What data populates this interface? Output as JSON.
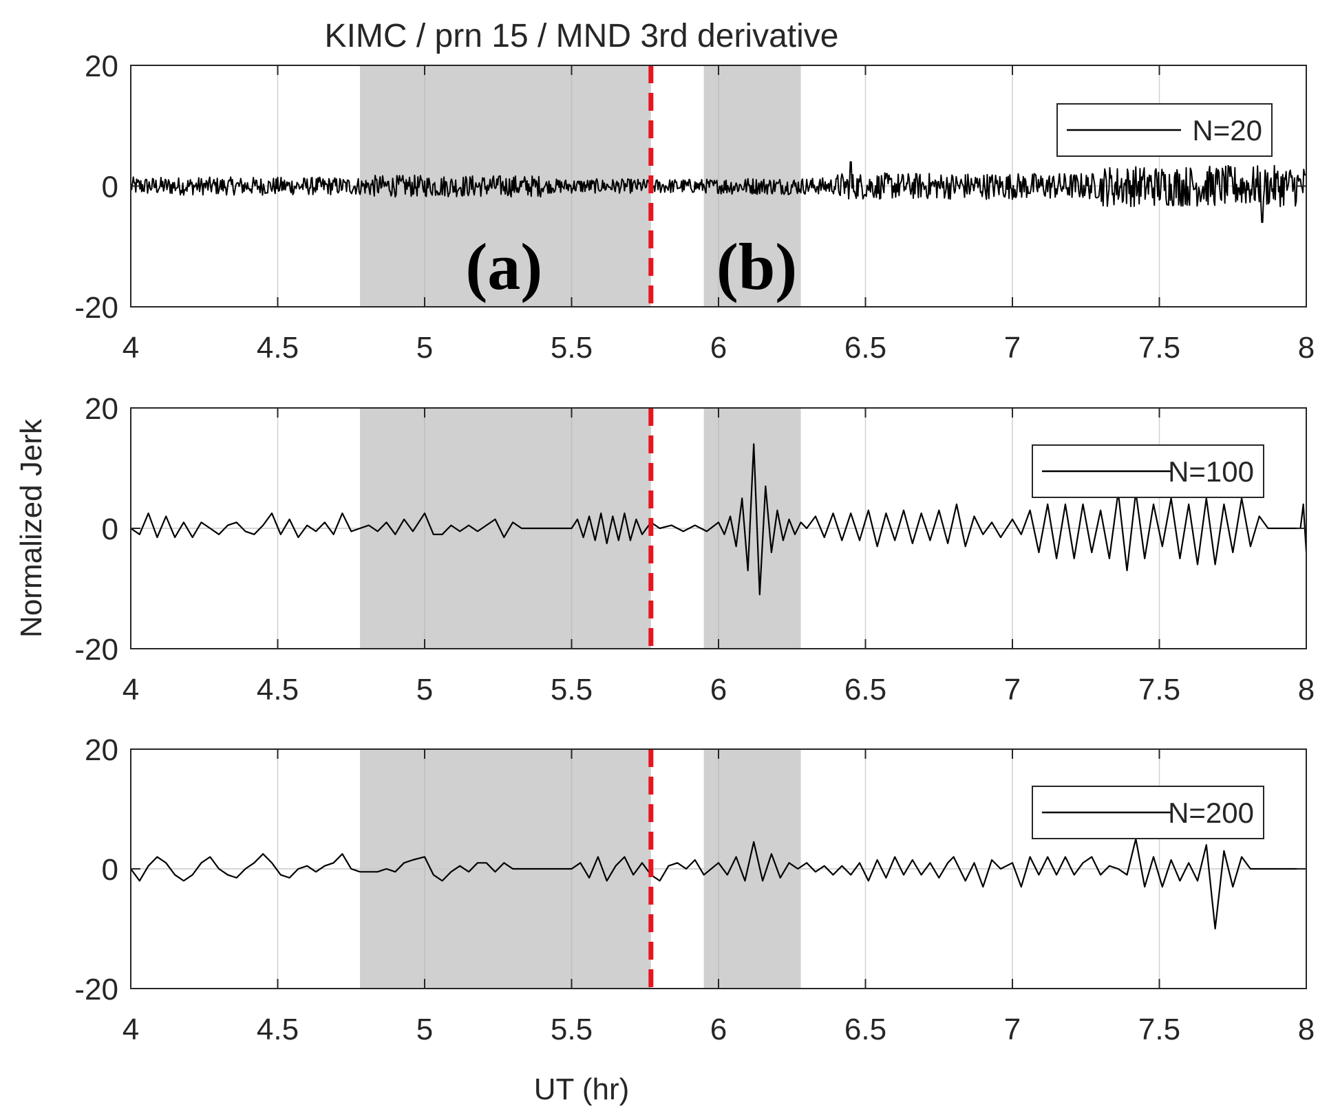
{
  "chart_data": {
    "type": "line",
    "title": "KIMC / prn 15 / MND 3rd derivative",
    "xlabel": "UT (hr)",
    "ylabel": "Normalized Jerk",
    "xlim": [
      4,
      8
    ],
    "ylim": [
      -20,
      20
    ],
    "xticks": [
      4,
      4.5,
      5,
      5.5,
      6,
      6.5,
      7,
      7.5,
      8
    ],
    "yticks": [
      -20,
      0,
      20
    ],
    "grid": "vertical",
    "event_line": {
      "x": 5.77,
      "color": "#e8141e",
      "style": "dashed"
    },
    "shaded_regions": [
      {
        "label": "(a)",
        "x_start": 4.78,
        "x_end": 5.77,
        "color": "#d0d0d0"
      },
      {
        "label": "(b)",
        "x_start": 5.95,
        "x_end": 6.28,
        "color": "#d0d0d0"
      }
    ],
    "legend_position": "top-right",
    "series": [
      {
        "name": "N=20",
        "color": "#000000",
        "segments": [
          {
            "x_start": 4.0,
            "x_end": 4.8,
            "amplitude": 1.5
          },
          {
            "x_start": 4.8,
            "x_end": 5.4,
            "amplitude": 1.8
          },
          {
            "x_start": 5.4,
            "x_end": 6.0,
            "amplitude": 1.2
          },
          {
            "x_start": 6.0,
            "x_end": 6.4,
            "amplitude": 1.4
          },
          {
            "x_start": 6.4,
            "x_end": 7.3,
            "amplitude": 2.2
          },
          {
            "x_start": 7.3,
            "x_end": 8.0,
            "amplitude": 3.4
          }
        ],
        "peaks": [
          {
            "x": 6.45,
            "y": 4
          },
          {
            "x": 7.85,
            "y": -6
          }
        ]
      },
      {
        "name": "N=100",
        "color": "#000000",
        "points": [
          [
            4.0,
            0
          ],
          [
            4.03,
            -1
          ],
          [
            4.06,
            2.5
          ],
          [
            4.09,
            -1.5
          ],
          [
            4.12,
            2
          ],
          [
            4.15,
            -1.5
          ],
          [
            4.18,
            1
          ],
          [
            4.21,
            -1.5
          ],
          [
            4.24,
            1
          ],
          [
            4.27,
            0
          ],
          [
            4.3,
            -1
          ],
          [
            4.33,
            0.5
          ],
          [
            4.36,
            1
          ],
          [
            4.39,
            -0.5
          ],
          [
            4.42,
            -1
          ],
          [
            4.45,
            0.5
          ],
          [
            4.48,
            2.5
          ],
          [
            4.51,
            -1
          ],
          [
            4.54,
            1.5
          ],
          [
            4.57,
            -1.5
          ],
          [
            4.6,
            0.5
          ],
          [
            4.63,
            -0.5
          ],
          [
            4.66,
            1
          ],
          [
            4.69,
            -1
          ],
          [
            4.72,
            2.5
          ],
          [
            4.75,
            -0.5
          ],
          [
            4.78,
            0
          ],
          [
            4.81,
            0.5
          ],
          [
            4.84,
            -0.5
          ],
          [
            4.87,
            1
          ],
          [
            4.9,
            -1
          ],
          [
            4.93,
            1.5
          ],
          [
            4.96,
            -0.5
          ],
          [
            5.0,
            2.5
          ],
          [
            5.03,
            -1
          ],
          [
            5.06,
            -1
          ],
          [
            5.09,
            0.5
          ],
          [
            5.12,
            -0.5
          ],
          [
            5.15,
            0.5
          ],
          [
            5.18,
            -0.5
          ],
          [
            5.21,
            0.5
          ],
          [
            5.24,
            1.5
          ],
          [
            5.27,
            -1.5
          ],
          [
            5.3,
            1
          ],
          [
            5.33,
            0
          ],
          [
            5.5,
            0
          ],
          [
            5.52,
            1.5
          ],
          [
            5.54,
            -1.5
          ],
          [
            5.56,
            2
          ],
          [
            5.58,
            -2
          ],
          [
            5.6,
            2.5
          ],
          [
            5.62,
            -2.5
          ],
          [
            5.64,
            2
          ],
          [
            5.66,
            -2
          ],
          [
            5.68,
            2.5
          ],
          [
            5.7,
            -2
          ],
          [
            5.72,
            1.5
          ],
          [
            5.74,
            -1
          ],
          [
            5.77,
            1
          ],
          [
            5.8,
            0
          ],
          [
            5.84,
            0.5
          ],
          [
            5.88,
            -0.5
          ],
          [
            5.92,
            0.5
          ],
          [
            5.96,
            -0.5
          ],
          [
            6.0,
            1
          ],
          [
            6.02,
            -1
          ],
          [
            6.04,
            2
          ],
          [
            6.06,
            -3
          ],
          [
            6.08,
            5
          ],
          [
            6.1,
            -7
          ],
          [
            6.12,
            14
          ],
          [
            6.14,
            -11
          ],
          [
            6.16,
            7
          ],
          [
            6.18,
            -4
          ],
          [
            6.2,
            3
          ],
          [
            6.22,
            -2
          ],
          [
            6.24,
            1.5
          ],
          [
            6.26,
            -1
          ],
          [
            6.28,
            1
          ],
          [
            6.3,
            0
          ],
          [
            6.33,
            2
          ],
          [
            6.36,
            -1.5
          ],
          [
            6.39,
            2.5
          ],
          [
            6.42,
            -2
          ],
          [
            6.45,
            2.5
          ],
          [
            6.48,
            -2
          ],
          [
            6.51,
            3
          ],
          [
            6.54,
            -3
          ],
          [
            6.57,
            2.5
          ],
          [
            6.6,
            -2
          ],
          [
            6.63,
            3
          ],
          [
            6.66,
            -2.5
          ],
          [
            6.69,
            2.5
          ],
          [
            6.72,
            -2
          ],
          [
            6.75,
            3
          ],
          [
            6.78,
            -2.5
          ],
          [
            6.81,
            4
          ],
          [
            6.84,
            -3
          ],
          [
            6.87,
            2
          ],
          [
            6.9,
            -1
          ],
          [
            6.93,
            1
          ],
          [
            6.96,
            -1.5
          ],
          [
            7.0,
            1.5
          ],
          [
            7.03,
            -1
          ],
          [
            7.06,
            3
          ],
          [
            7.09,
            -4
          ],
          [
            7.12,
            4
          ],
          [
            7.15,
            -5
          ],
          [
            7.18,
            4
          ],
          [
            7.21,
            -5
          ],
          [
            7.24,
            4
          ],
          [
            7.27,
            -4
          ],
          [
            7.3,
            3
          ],
          [
            7.33,
            -5
          ],
          [
            7.36,
            6
          ],
          [
            7.39,
            -7
          ],
          [
            7.42,
            6
          ],
          [
            7.45,
            -5
          ],
          [
            7.48,
            4
          ],
          [
            7.51,
            -3
          ],
          [
            7.54,
            5
          ],
          [
            7.57,
            -5
          ],
          [
            7.6,
            4
          ],
          [
            7.63,
            -6
          ],
          [
            7.66,
            5
          ],
          [
            7.69,
            -6
          ],
          [
            7.72,
            4
          ],
          [
            7.75,
            -4
          ],
          [
            7.78,
            5
          ],
          [
            7.81,
            -3
          ],
          [
            7.84,
            2
          ],
          [
            7.87,
            0
          ],
          [
            7.98,
            0
          ],
          [
            7.99,
            4
          ],
          [
            8.0,
            -4
          ]
        ]
      },
      {
        "name": "N=200",
        "color": "#000000",
        "points": [
          [
            4.0,
            0
          ],
          [
            4.03,
            -2
          ],
          [
            4.06,
            0.5
          ],
          [
            4.09,
            2
          ],
          [
            4.12,
            1
          ],
          [
            4.15,
            -1
          ],
          [
            4.18,
            -2
          ],
          [
            4.21,
            -1
          ],
          [
            4.24,
            1
          ],
          [
            4.27,
            2
          ],
          [
            4.3,
            0
          ],
          [
            4.33,
            -1
          ],
          [
            4.36,
            -1.5
          ],
          [
            4.39,
            0
          ],
          [
            4.42,
            1
          ],
          [
            4.45,
            2.5
          ],
          [
            4.48,
            1
          ],
          [
            4.51,
            -1
          ],
          [
            4.54,
            -1.5
          ],
          [
            4.57,
            0
          ],
          [
            4.6,
            0.5
          ],
          [
            4.63,
            -0.5
          ],
          [
            4.66,
            0.5
          ],
          [
            4.69,
            1
          ],
          [
            4.72,
            2.5
          ],
          [
            4.75,
            0
          ],
          [
            4.78,
            -0.5
          ],
          [
            4.84,
            -0.5
          ],
          [
            4.87,
            0
          ],
          [
            4.9,
            -0.5
          ],
          [
            4.93,
            1
          ],
          [
            4.96,
            1.5
          ],
          [
            5.0,
            2
          ],
          [
            5.03,
            -1
          ],
          [
            5.06,
            -2
          ],
          [
            5.09,
            -0.5
          ],
          [
            5.12,
            0.5
          ],
          [
            5.15,
            -0.5
          ],
          [
            5.18,
            1
          ],
          [
            5.21,
            1
          ],
          [
            5.24,
            -0.5
          ],
          [
            5.27,
            1
          ],
          [
            5.3,
            0
          ],
          [
            5.5,
            0
          ],
          [
            5.53,
            1
          ],
          [
            5.56,
            -1.5
          ],
          [
            5.59,
            2
          ],
          [
            5.62,
            -2
          ],
          [
            5.65,
            0.5
          ],
          [
            5.68,
            2
          ],
          [
            5.71,
            -1
          ],
          [
            5.74,
            1
          ],
          [
            5.77,
            -1
          ],
          [
            5.8,
            -2
          ],
          [
            5.83,
            0.5
          ],
          [
            5.86,
            1
          ],
          [
            5.89,
            0
          ],
          [
            5.92,
            1.5
          ],
          [
            5.95,
            -1
          ],
          [
            6.0,
            1
          ],
          [
            6.03,
            -1
          ],
          [
            6.06,
            2
          ],
          [
            6.09,
            -2
          ],
          [
            6.12,
            4.5
          ],
          [
            6.15,
            -2
          ],
          [
            6.18,
            2.5
          ],
          [
            6.21,
            -1.5
          ],
          [
            6.24,
            1
          ],
          [
            6.27,
            0
          ],
          [
            6.3,
            1
          ],
          [
            6.33,
            -0.5
          ],
          [
            6.36,
            0.5
          ],
          [
            6.39,
            -1
          ],
          [
            6.42,
            0.5
          ],
          [
            6.45,
            -1
          ],
          [
            6.48,
            1
          ],
          [
            6.51,
            -2
          ],
          [
            6.54,
            1.5
          ],
          [
            6.57,
            -1.5
          ],
          [
            6.6,
            2
          ],
          [
            6.63,
            -1
          ],
          [
            6.66,
            1.5
          ],
          [
            6.69,
            -1
          ],
          [
            6.72,
            1
          ],
          [
            6.75,
            -1.5
          ],
          [
            6.78,
            1
          ],
          [
            6.8,
            2
          ],
          [
            6.84,
            -2
          ],
          [
            6.87,
            1
          ],
          [
            6.9,
            -3
          ],
          [
            6.93,
            1.5
          ],
          [
            6.96,
            0
          ],
          [
            7.0,
            1
          ],
          [
            7.03,
            -3
          ],
          [
            7.06,
            2
          ],
          [
            7.09,
            -1
          ],
          [
            7.12,
            2
          ],
          [
            7.15,
            -1
          ],
          [
            7.18,
            2
          ],
          [
            7.21,
            -1
          ],
          [
            7.24,
            1
          ],
          [
            7.27,
            2
          ],
          [
            7.3,
            -1
          ],
          [
            7.33,
            0.5
          ],
          [
            7.36,
            0
          ],
          [
            7.39,
            -1
          ],
          [
            7.42,
            5
          ],
          [
            7.45,
            -3
          ],
          [
            7.48,
            2
          ],
          [
            7.51,
            -3
          ],
          [
            7.54,
            1.5
          ],
          [
            7.57,
            -2
          ],
          [
            7.6,
            1
          ],
          [
            7.63,
            -2
          ],
          [
            7.66,
            4
          ],
          [
            7.69,
            -10
          ],
          [
            7.72,
            3
          ],
          [
            7.75,
            -3
          ],
          [
            7.78,
            2
          ],
          [
            7.81,
            0
          ],
          [
            8.0,
            0
          ]
        ]
      }
    ]
  },
  "panels": [
    {
      "legend": "N=20"
    },
    {
      "legend": "N=100"
    },
    {
      "legend": "N=200"
    }
  ]
}
